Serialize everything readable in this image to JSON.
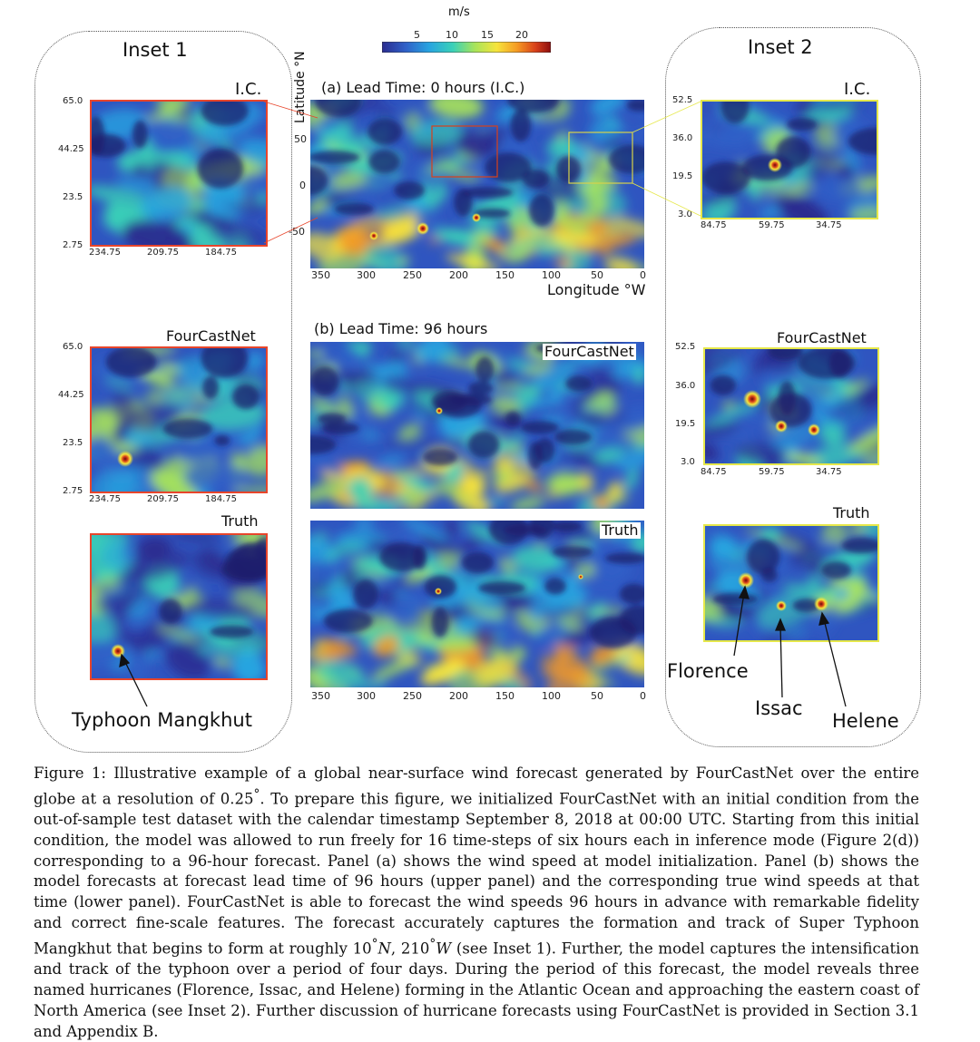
{
  "colorbar": {
    "unit": "m/s",
    "ticks": [
      "5",
      "10",
      "15",
      "20"
    ],
    "colors": [
      "#2b2c8f",
      "#2f60c8",
      "#27a4e0",
      "#3ad1b8",
      "#a8e45a",
      "#f6e43c",
      "#f59a23",
      "#d8401a",
      "#8c0d0d"
    ]
  },
  "main": {
    "panel_a_title": "(a) Lead Time: 0 hours (I.C.)",
    "panel_b_title": "(b) Lead Time: 96 hours",
    "lat_label": "Latitude °N",
    "lon_label": "Longitude °W",
    "lat_ticks": [
      "50",
      "0",
      "-50"
    ],
    "lon_ticks": [
      "350",
      "300",
      "250",
      "200",
      "150",
      "100",
      "50",
      "0"
    ],
    "forecast_tag": "FourCastNet",
    "truth_tag": "Truth"
  },
  "inset1": {
    "title": "Inset 1",
    "ic_label": "I.C.",
    "fcn_label": "FourCastNet",
    "truth_label": "Truth",
    "lat_ticks": [
      "65.0",
      "44.25",
      "23.5",
      "2.75"
    ],
    "lon_ticks": [
      "234.75",
      "209.75",
      "184.75"
    ],
    "annotation": "Typhoon Mangkhut"
  },
  "inset2": {
    "title": "Inset 2",
    "ic_label": "I.C.",
    "fcn_label": "FourCastNet",
    "truth_label": "Truth",
    "lat_ticks": [
      "52.5",
      "36.0",
      "19.5",
      "3.0"
    ],
    "lon_ticks": [
      "84.75",
      "59.75",
      "34.75"
    ],
    "annotations": [
      "Florence",
      "Issac",
      "Helene"
    ]
  },
  "caption": {
    "line1": "Figure 1: Illustrative example of a global near-surface wind forecast generated by FourCastNet over the entire globe at a resolution of 0.25",
    "deg1": "°",
    "line2": ". To prepare this figure, we initialized FourCastNet with an initial condition from the out-of-sample test dataset with the calendar timestamp September 8, 2018 at 00:00 UTC. Starting from this initial condition, the model was allowed to run freely for 16 time-steps of six hours each in inference mode (Figure 2(d)) corresponding to a 96-hour forecast. Panel (a) shows the wind speed at model initialization. Panel (b) shows the model forecasts at forecast lead time of 96 hours (upper panel) and the corresponding true wind speeds at that time (lower panel). FourCastNet is able to forecast the wind speeds 96 hours in advance with remarkable fidelity and correct fine-scale features. The forecast accurately captures the formation and track of Super Typhoon Mangkhut that begins to form at roughly 10",
    "deg2": "°",
    "n_unit": "N",
    "comma": ",",
    "lon_val": "210",
    "deg3": "°",
    "w_unit": "W",
    "line3": " (see Inset 1). Further, the model captures the intensification and track of the typhoon over a period of four days. During the period of this forecast, the model reveals three named hurricanes (Florence, Issac, and Helene) forming in the Atlantic Ocean and approaching the eastern coast of North America (see Inset 2). Further discussion of hurricane forecasts using FourCastNet is provided in Section 3.1 and Appendix B."
  }
}
